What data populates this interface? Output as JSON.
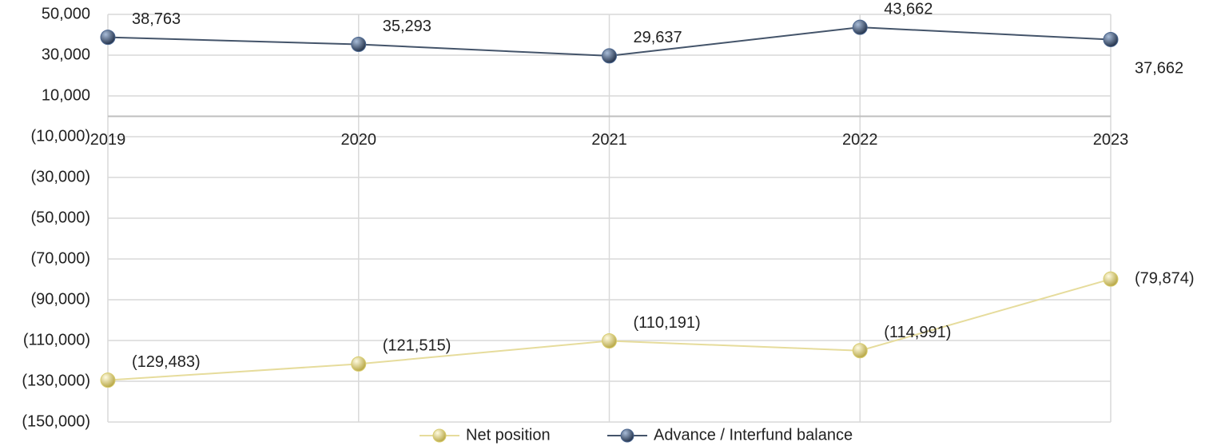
{
  "chart_data": {
    "type": "line",
    "categories": [
      "2019",
      "2020",
      "2021",
      "2022",
      "2023"
    ],
    "series": [
      {
        "name": "Net position",
        "color": "#e6dc9c",
        "marker_color": "#d9cd6e",
        "values": [
          -129483,
          -121515,
          -110191,
          -114991,
          -79874
        ],
        "value_labels": [
          "(129,483)",
          "(121,515)",
          "(110,191)",
          "(114,991)",
          "(79,874)"
        ]
      },
      {
        "name": "Advance / Interfund balance",
        "color": "#44546a",
        "marker_color": "#4a6690",
        "values": [
          38763,
          35293,
          29637,
          43662,
          37662
        ],
        "value_labels": [
          "38,763",
          "35,293",
          "29,637",
          "43,662",
          "37,662"
        ]
      }
    ],
    "ylim": [
      -150000,
      50000
    ],
    "yticks": [
      {
        "value": -150000,
        "label": "(150,000)"
      },
      {
        "value": -130000,
        "label": "(130,000)"
      },
      {
        "value": -110000,
        "label": "(110,000)"
      },
      {
        "value": -90000,
        "label": "(90,000)"
      },
      {
        "value": -70000,
        "label": "(70,000)"
      },
      {
        "value": -50000,
        "label": "(50,000)"
      },
      {
        "value": -30000,
        "label": "(30,000)"
      },
      {
        "value": -10000,
        "label": "(10,000)"
      },
      {
        "value": 10000,
        "label": "10,000"
      },
      {
        "value": 30000,
        "label": "30,000"
      },
      {
        "value": 50000,
        "label": "50,000"
      }
    ],
    "grid": true,
    "legend": "bottom"
  }
}
